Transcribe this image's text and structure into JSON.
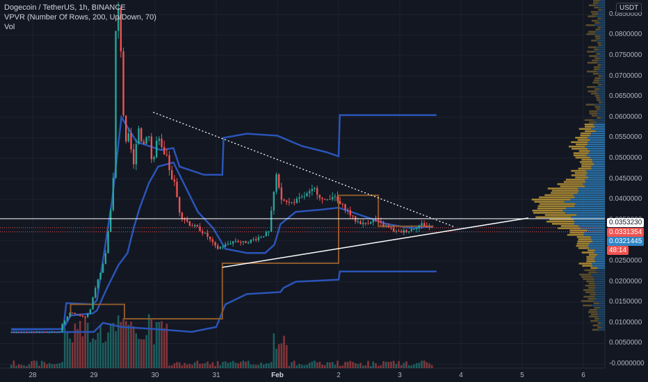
{
  "legend": {
    "symbol": "Dogecoin / TetherUS, 1h, BINANCE",
    "indicator1": "VPVR (Number Of Rows, 200, Up/Down, 70)",
    "indicator2": "Vol"
  },
  "currency_button": "USDT",
  "price_labels": {
    "resistance": "0.0353230",
    "last": "0.0331354",
    "vpvr": "0.0321445",
    "countdown": "48:14"
  },
  "colors": {
    "background": "#131722",
    "up": "#26a69a",
    "down": "#ef5350",
    "bb": "#2a55b8",
    "donchian": "#8d5a2b",
    "vp_up": "#2f85c4",
    "vp_down": "#c9a13a"
  },
  "chart_data": {
    "type": "candlestick",
    "title": "Dogecoin / TetherUS, 1h, BINANCE",
    "y_ticks": [
      "0.0850000",
      "0.0800000",
      "0.0750000",
      "0.0700000",
      "0.0650000",
      "0.0600000",
      "0.0550000",
      "0.0500000",
      "0.0450000",
      "0.0400000",
      "0.0350000",
      "0.0300000",
      "0.0250000",
      "0.0200000",
      "0.0150000",
      "0.0100000",
      "0.0050000",
      "-0.0000000"
    ],
    "x_ticks": [
      {
        "label": "28",
        "day": 0
      },
      {
        "label": "29",
        "day": 1
      },
      {
        "label": "30",
        "day": 2
      },
      {
        "label": "31",
        "day": 3
      },
      {
        "label": "Feb",
        "day": 4,
        "bold": true
      },
      {
        "label": "2",
        "day": 5
      },
      {
        "label": "3",
        "day": 6
      },
      {
        "label": "4",
        "day": 7
      },
      {
        "label": "5",
        "day": 8
      },
      {
        "label": "6",
        "day": 9
      }
    ],
    "ylim": [
      -0.001,
      0.0885
    ],
    "x_start_day": -0.35,
    "x_end_day": 9.4,
    "price_path": [
      [
        -0.35,
        0.0077
      ],
      [
        0.5,
        0.0078
      ],
      [
        0.52,
        0.0095
      ],
      [
        0.65,
        0.0125
      ],
      [
        0.9,
        0.0115
      ],
      [
        0.98,
        0.013
      ],
      [
        1.05,
        0.018
      ],
      [
        1.15,
        0.022
      ],
      [
        1.22,
        0.0255
      ],
      [
        1.3,
        0.035
      ],
      [
        1.36,
        0.045
      ],
      [
        1.4,
        0.08
      ],
      [
        1.46,
        0.0875
      ],
      [
        1.5,
        0.07
      ],
      [
        1.55,
        0.052
      ],
      [
        1.62,
        0.055
      ],
      [
        1.7,
        0.047
      ],
      [
        1.75,
        0.059
      ],
      [
        1.85,
        0.053
      ],
      [
        1.92,
        0.058
      ],
      [
        2.0,
        0.048
      ],
      [
        2.08,
        0.055
      ],
      [
        2.16,
        0.051
      ],
      [
        2.25,
        0.049
      ],
      [
        2.35,
        0.044
      ],
      [
        2.45,
        0.037
      ],
      [
        2.6,
        0.034
      ],
      [
        2.75,
        0.033
      ],
      [
        2.9,
        0.031
      ],
      [
        3.05,
        0.028
      ],
      [
        3.2,
        0.029
      ],
      [
        3.35,
        0.03
      ],
      [
        3.5,
        0.0295
      ],
      [
        3.7,
        0.0305
      ],
      [
        3.9,
        0.032
      ],
      [
        4.02,
        0.046
      ],
      [
        4.1,
        0.04
      ],
      [
        4.25,
        0.039
      ],
      [
        4.45,
        0.0405
      ],
      [
        4.65,
        0.0425
      ],
      [
        4.8,
        0.0395
      ],
      [
        4.95,
        0.041
      ],
      [
        5.05,
        0.039
      ],
      [
        5.15,
        0.038
      ],
      [
        5.3,
        0.035
      ],
      [
        5.45,
        0.034
      ],
      [
        5.6,
        0.035
      ],
      [
        5.8,
        0.0335
      ],
      [
        6.0,
        0.032
      ],
      [
        6.2,
        0.0325
      ],
      [
        6.4,
        0.034
      ],
      [
        6.55,
        0.0331
      ]
    ],
    "support_line": {
      "start": [
        3.1,
        0.0235
      ],
      "end": [
        8.1,
        0.0355
      ]
    },
    "resistance_line": {
      "start": [
        1.97,
        0.0612
      ],
      "end": [
        6.9,
        0.0333
      ]
    },
    "horizontal_levels": [
      0.035323,
      0.0331354,
      0.0321445
    ],
    "bollinger_middle": [
      [
        -0.35,
        0.0083
      ],
      [
        0.5,
        0.0085
      ],
      [
        0.62,
        0.0118
      ],
      [
        0.98,
        0.0123
      ],
      [
        1.05,
        0.013
      ],
      [
        1.2,
        0.018
      ],
      [
        1.4,
        0.024
      ],
      [
        1.55,
        0.027
      ],
      [
        1.65,
        0.033
      ],
      [
        1.75,
        0.038
      ],
      [
        1.9,
        0.044
      ],
      [
        2.05,
        0.048
      ],
      [
        2.3,
        0.049
      ],
      [
        2.4,
        0.046
      ],
      [
        2.7,
        0.037
      ],
      [
        2.95,
        0.033
      ],
      [
        3.15,
        0.028
      ],
      [
        3.5,
        0.027
      ],
      [
        3.8,
        0.027
      ],
      [
        3.95,
        0.029
      ],
      [
        4.05,
        0.034
      ],
      [
        4.3,
        0.037
      ],
      [
        4.7,
        0.0375
      ],
      [
        5.0,
        0.038
      ],
      [
        5.4,
        0.036
      ],
      [
        5.8,
        0.034
      ],
      [
        6.2,
        0.033
      ],
      [
        6.55,
        0.0335
      ]
    ],
    "bollinger_upper": [
      [
        -0.35,
        0.0085
      ],
      [
        0.5,
        0.0085
      ],
      [
        0.55,
        0.0148
      ],
      [
        0.98,
        0.0145
      ],
      [
        1.05,
        0.0155
      ],
      [
        1.3,
        0.04
      ],
      [
        1.45,
        0.06
      ],
      [
        1.7,
        0.054
      ],
      [
        2.1,
        0.052
      ],
      [
        2.3,
        0.0525
      ],
      [
        2.4,
        0.048
      ],
      [
        2.8,
        0.046
      ],
      [
        3.1,
        0.046
      ],
      [
        3.12,
        0.055
      ],
      [
        3.5,
        0.056
      ],
      [
        4.0,
        0.0555
      ],
      [
        4.4,
        0.053
      ],
      [
        4.8,
        0.0515
      ],
      [
        5.0,
        0.0505
      ],
      [
        5.02,
        0.0605
      ],
      [
        6.6,
        0.0605
      ]
    ],
    "bollinger_lower": [
      [
        -0.35,
        0.0077
      ],
      [
        1.0,
        0.0078
      ],
      [
        1.15,
        0.01
      ],
      [
        1.45,
        0.009
      ],
      [
        2.0,
        0.0085
      ],
      [
        2.6,
        0.0078
      ],
      [
        3.0,
        0.009
      ],
      [
        3.15,
        0.0145
      ],
      [
        3.5,
        0.017
      ],
      [
        4.05,
        0.0175
      ],
      [
        4.1,
        0.0185
      ],
      [
        4.3,
        0.02
      ],
      [
        5.0,
        0.0205
      ],
      [
        5.02,
        0.0225
      ],
      [
        6.6,
        0.0225
      ]
    ],
    "donchian": [
      [
        0.62,
        0.0115
      ],
      [
        0.62,
        0.0145
      ],
      [
        1.5,
        0.0145
      ],
      [
        1.5,
        0.011
      ],
      [
        3.1,
        0.011
      ],
      [
        3.1,
        0.0245
      ],
      [
        5.0,
        0.0245
      ],
      [
        5.0,
        0.041
      ],
      [
        5.65,
        0.041
      ],
      [
        5.65,
        0.0335
      ],
      [
        6.55,
        0.0335
      ]
    ],
    "volume_profile_top_price": 0.0885,
    "volume_profile_bottom_price": 0.008
  }
}
